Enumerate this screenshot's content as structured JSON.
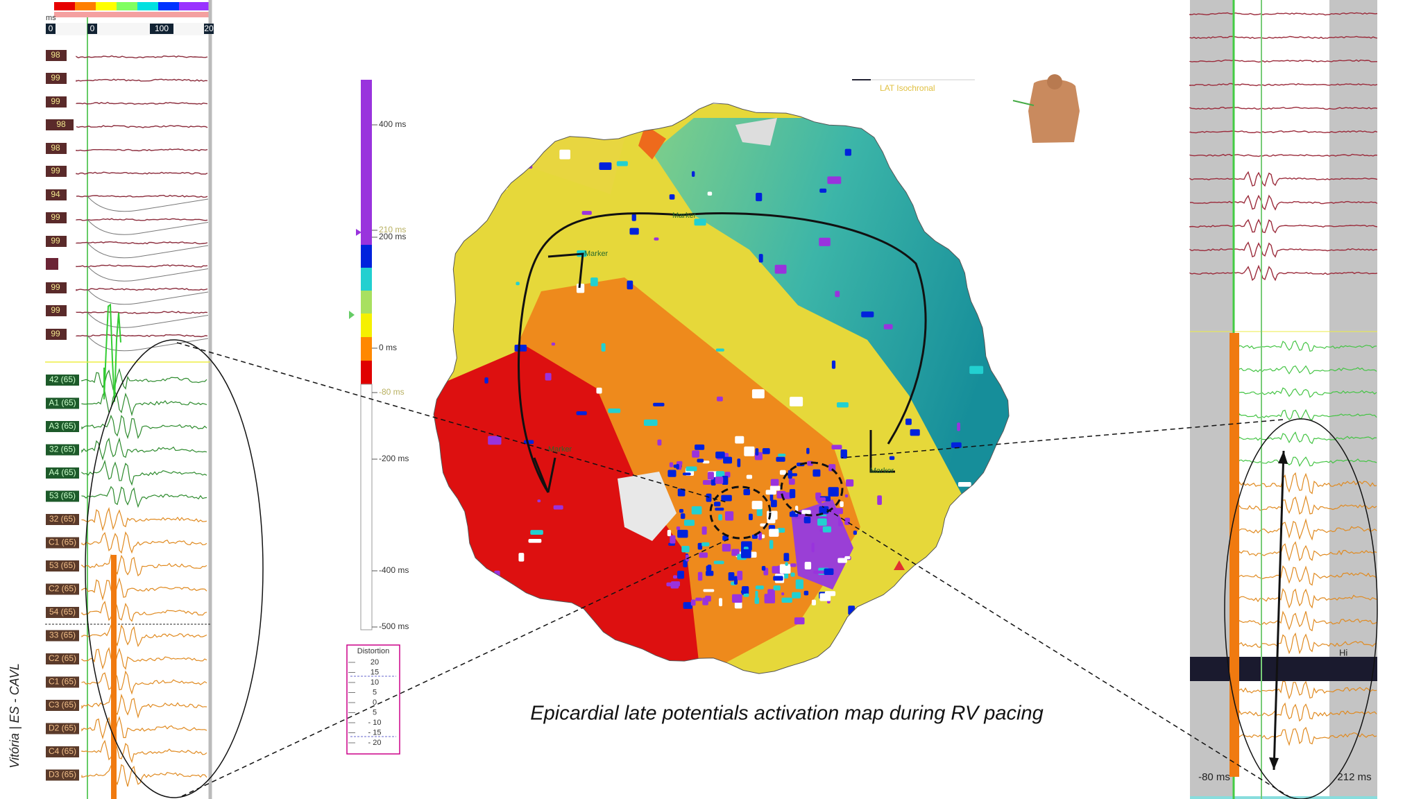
{
  "side_label": "Vitória | ES - CAVL",
  "left_panel": {
    "header": "ms",
    "ruler": [
      "0",
      "0",
      "100",
      "20"
    ],
    "channels": [
      "98",
      "99",
      "99",
      "98",
      "98",
      "99",
      "94",
      "99",
      "99",
      "99",
      "99",
      "99"
    ],
    "bipolar": [
      "42 (65)",
      "A1 (65)",
      "A3 (65)",
      "32 (65)",
      "A4 (65)",
      "53 (65)",
      "32 (65)",
      "C1 (65)",
      "53 (65)",
      "C2 (65)",
      "54 (65)",
      "33 (65)",
      "C2 (65)",
      "C1 (65)",
      "C3 (65)",
      "D2 (65)",
      "C4 (65)",
      "D3 (65)"
    ]
  },
  "color_scale": {
    "ticks": [
      "400 ms",
      "210 ms",
      "200 ms",
      "0 ms",
      "-80 ms",
      "-200 ms",
      "-400 ms",
      "-500 ms"
    ],
    "distortion": {
      "title": "Distortion",
      "ticks": [
        "20",
        "15",
        "10",
        "5",
        "0",
        "5",
        "- 10",
        "- 15",
        "- 20"
      ]
    }
  },
  "map": {
    "legend": "LAT Isochronal",
    "markers": [
      "Marker",
      "Marker",
      "Marker",
      "Marker"
    ]
  },
  "caption": "Epicardial late potentials activation map during RV pacing",
  "right_panel": {
    "start": "-80 ms",
    "end": "212 ms",
    "label": "Hi"
  }
}
